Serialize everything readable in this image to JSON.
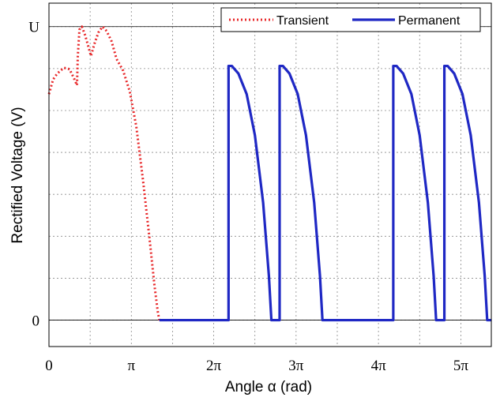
{
  "chart_data": {
    "type": "line",
    "xlabel": "Angle α (rad)",
    "ylabel": "Rectified Voltage (V)",
    "xlim": [
      0,
      5.37
    ],
    "ylim": [
      -0.09,
      1.08
    ],
    "x_unit": "π rad",
    "x_ticks": [
      {
        "value": 0,
        "label": "0"
      },
      {
        "value": 1,
        "label": "π"
      },
      {
        "value": 2,
        "label": "2π"
      },
      {
        "value": 3,
        "label": "3π"
      },
      {
        "value": 4,
        "label": "4π"
      },
      {
        "value": 5,
        "label": "5π"
      }
    ],
    "y_ticks": [
      {
        "value": 0,
        "label": "0"
      },
      {
        "value": 1,
        "label": "U"
      }
    ],
    "grid": true,
    "legend_position": "top-right",
    "series": [
      {
        "name": "Transient",
        "style": "dotted",
        "color": "#e8282a",
        "points": [
          [
            0.0,
            0.77
          ],
          [
            0.05,
            0.82
          ],
          [
            0.1,
            0.84
          ],
          [
            0.18,
            0.86
          ],
          [
            0.25,
            0.855
          ],
          [
            0.31,
            0.82
          ],
          [
            0.34,
            0.8
          ],
          [
            0.35,
            0.9
          ],
          [
            0.37,
            0.99
          ],
          [
            0.4,
            1.0
          ],
          [
            0.44,
            0.97
          ],
          [
            0.48,
            0.93
          ],
          [
            0.51,
            0.9
          ],
          [
            0.55,
            0.94
          ],
          [
            0.6,
            0.98
          ],
          [
            0.65,
            1.0
          ],
          [
            0.7,
            0.985
          ],
          [
            0.76,
            0.95
          ],
          [
            0.82,
            0.89
          ],
          [
            0.9,
            0.85
          ],
          [
            0.98,
            0.78
          ],
          [
            1.06,
            0.66
          ],
          [
            1.14,
            0.48
          ],
          [
            1.22,
            0.28
          ],
          [
            1.28,
            0.12
          ],
          [
            1.32,
            0.03
          ],
          [
            1.34,
            0.0
          ]
        ]
      },
      {
        "name": "Permanent",
        "style": "solid",
        "color": "#1f28c4",
        "points": [
          [
            1.34,
            0.0
          ],
          [
            2.18,
            0.0
          ],
          [
            2.18,
            0.866
          ],
          [
            2.22,
            0.866
          ],
          [
            2.3,
            0.84
          ],
          [
            2.4,
            0.77
          ],
          [
            2.5,
            0.63
          ],
          [
            2.6,
            0.4
          ],
          [
            2.67,
            0.15
          ],
          [
            2.7,
            0.0
          ],
          [
            2.8,
            0.0
          ],
          [
            2.8,
            0.866
          ],
          [
            2.84,
            0.866
          ],
          [
            2.92,
            0.84
          ],
          [
            3.02,
            0.77
          ],
          [
            3.12,
            0.63
          ],
          [
            3.22,
            0.4
          ],
          [
            3.29,
            0.15
          ],
          [
            3.32,
            0.0
          ],
          [
            4.18,
            0.0
          ],
          [
            4.18,
            0.866
          ],
          [
            4.22,
            0.866
          ],
          [
            4.3,
            0.84
          ],
          [
            4.4,
            0.77
          ],
          [
            4.5,
            0.63
          ],
          [
            4.6,
            0.4
          ],
          [
            4.67,
            0.15
          ],
          [
            4.7,
            0.0
          ],
          [
            4.8,
            0.0
          ],
          [
            4.8,
            0.866
          ],
          [
            4.84,
            0.866
          ],
          [
            4.92,
            0.84
          ],
          [
            5.02,
            0.77
          ],
          [
            5.12,
            0.63
          ],
          [
            5.22,
            0.4
          ],
          [
            5.29,
            0.15
          ],
          [
            5.32,
            0.0
          ],
          [
            5.37,
            0.0
          ]
        ]
      }
    ]
  }
}
